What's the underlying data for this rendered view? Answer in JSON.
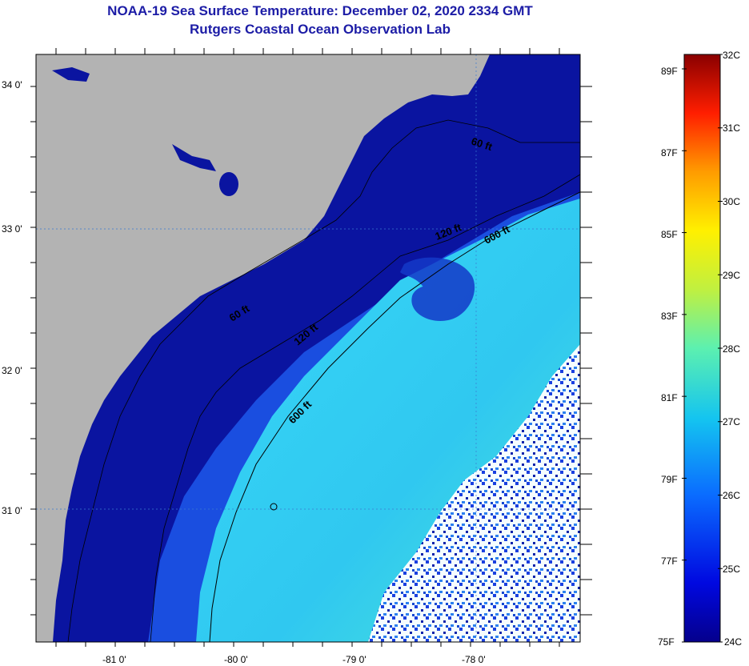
{
  "title_line1": "NOAA-19 Sea Surface Temperature:  December 02, 2020 2334 GMT",
  "title_line2": "Rutgers Coastal Ocean Observation Lab",
  "map": {
    "lat_labels": [
      "34 0'",
      "33 0'",
      "32 0'",
      "31 0'"
    ],
    "lon_labels": [
      "-81 0'",
      "-80 0'",
      "-79 0'",
      "-78 0'"
    ],
    "contour_labels": [
      "60 ft",
      "120 ft",
      "600 ft",
      "60 ft",
      "120 ft",
      "600 ft"
    ],
    "colors": {
      "land": "#b3b3b3",
      "cold_shelf": "#0a14a0",
      "mid_shelf": "#1a4ee0",
      "warm_stream": "#2fd0f0",
      "cloud": "#ffffff"
    }
  },
  "colorbar": {
    "celsius_labels": [
      "32C",
      "31C",
      "30C",
      "29C",
      "28C",
      "27C",
      "26C",
      "25C",
      "24C"
    ],
    "fahrenheit_labels": [
      "89F",
      "87F",
      "85F",
      "83F",
      "81F",
      "79F",
      "77F",
      "75F"
    ],
    "range_c": [
      24,
      32
    ],
    "range_f": [
      75,
      89
    ]
  }
}
